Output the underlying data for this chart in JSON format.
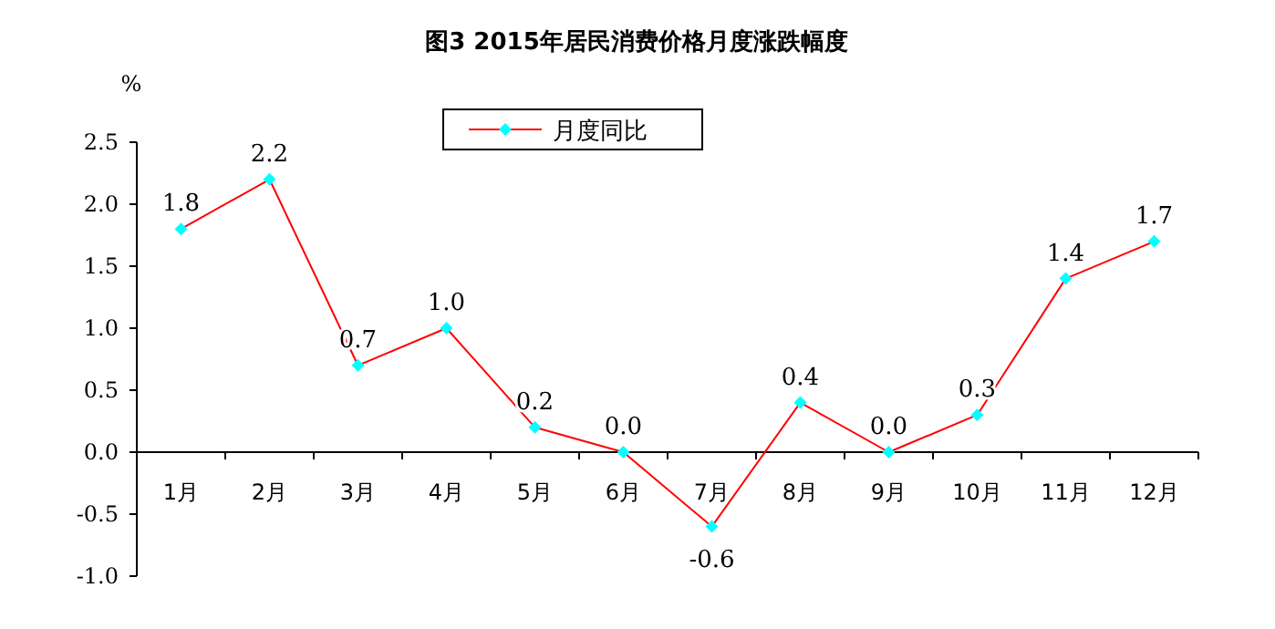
{
  "chart_data": {
    "type": "line",
    "title": "图3 2015年居民消费价格月度涨跌幅度",
    "ylabel": "%",
    "categories": [
      "1月",
      "2月",
      "3月",
      "4月",
      "5月",
      "6月",
      "7月",
      "8月",
      "9月",
      "10月",
      "11月",
      "12月"
    ],
    "series": [
      {
        "name": "月度同比",
        "color": "#ff0000",
        "colors": [
          "#00ffff",
          "#00ffff",
          "#00ffff",
          "#00ffff",
          "#00ffff",
          "#00ffff",
          "#00ffff",
          "#00ffff",
          "#00ffff",
          "#00ffff",
          "#00ffff",
          "#00ffff"
        ],
        "values": [
          1.8,
          2.2,
          0.7,
          1.0,
          0.2,
          0.0,
          -0.6,
          0.4,
          0.0,
          0.3,
          1.4,
          1.7
        ],
        "value_labels": [
          "1.8",
          "2.2",
          "0.7",
          "1.0",
          "0.2",
          "0.0",
          "-0.6",
          "0.4",
          "0.0",
          "0.3",
          "1.4",
          "1.7"
        ]
      }
    ],
    "ylim": [
      -1.0,
      2.5
    ],
    "yticks": [
      {
        "value": 2.5,
        "label": "2.5"
      },
      {
        "value": 2.0,
        "label": "2.0"
      },
      {
        "value": 1.5,
        "label": "1.5"
      },
      {
        "value": 1.0,
        "label": "1.0"
      },
      {
        "value": 0.5,
        "label": "0.5"
      },
      {
        "value": 0.0,
        "label": "0.0"
      },
      {
        "value": -0.5,
        "label": "-0.5"
      },
      {
        "value": -1.0,
        "label": "-1.0"
      }
    ],
    "legend": "top",
    "marker": "diamond",
    "line_style": "solid"
  }
}
